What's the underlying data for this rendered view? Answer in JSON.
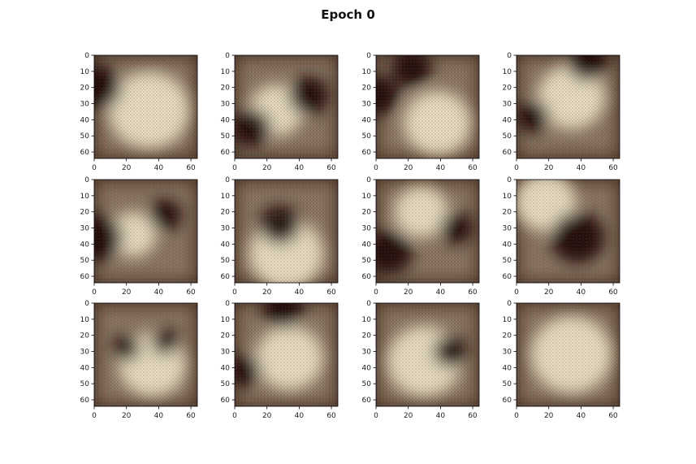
{
  "figure": {
    "title": "Epoch 0"
  },
  "chart_data": {
    "type": "image-grid",
    "title": "Epoch 0",
    "rows": 3,
    "cols": 4,
    "image_size": [
      64,
      64
    ],
    "xlim": [
      0,
      64
    ],
    "ylim": [
      64,
      0
    ],
    "xticks": [
      0,
      20,
      40,
      60
    ],
    "yticks": [
      0,
      10,
      20,
      30,
      40,
      50,
      60
    ],
    "tick_labels_x": [
      "0",
      "20",
      "40",
      "60"
    ],
    "tick_labels_y": [
      "0",
      "10",
      "20",
      "30",
      "40",
      "50",
      "60"
    ],
    "grid": false,
    "colors": {
      "bright": "#efe5c8",
      "mid": "#8a7460",
      "dark": "#160706"
    },
    "panels": [
      {
        "description_blobs": [
          {
            "cx": 34,
            "cy": 34,
            "r": 24,
            "tone": "bright"
          },
          {
            "cx": 2,
            "cy": 20,
            "r": 14,
            "tone": "dark"
          }
        ]
      },
      {
        "description_blobs": [
          {
            "cx": 26,
            "cy": 34,
            "r": 16,
            "tone": "bright"
          },
          {
            "cx": 10,
            "cy": 45,
            "r": 12,
            "tone": "dark"
          },
          {
            "cx": 46,
            "cy": 25,
            "r": 12,
            "tone": "dark"
          }
        ]
      },
      {
        "description_blobs": [
          {
            "cx": 38,
            "cy": 42,
            "r": 20,
            "tone": "bright"
          },
          {
            "cx": 22,
            "cy": 8,
            "r": 12,
            "tone": "dark"
          },
          {
            "cx": 2,
            "cy": 25,
            "r": 12,
            "tone": "dark"
          }
        ]
      },
      {
        "description_blobs": [
          {
            "cx": 34,
            "cy": 26,
            "r": 20,
            "tone": "bright"
          },
          {
            "cx": 44,
            "cy": 4,
            "r": 12,
            "tone": "dark"
          },
          {
            "cx": 10,
            "cy": 38,
            "r": 10,
            "tone": "dark"
          }
        ]
      },
      {
        "description_blobs": [
          {
            "cx": 24,
            "cy": 34,
            "r": 14,
            "tone": "bright"
          },
          {
            "cx": 3,
            "cy": 36,
            "r": 14,
            "tone": "dark"
          },
          {
            "cx": 44,
            "cy": 22,
            "r": 10,
            "tone": "dark"
          }
        ]
      },
      {
        "description_blobs": [
          {
            "cx": 32,
            "cy": 46,
            "r": 22,
            "tone": "bright"
          },
          {
            "cx": 28,
            "cy": 28,
            "r": 12,
            "tone": "dark"
          }
        ]
      },
      {
        "description_blobs": [
          {
            "cx": 28,
            "cy": 20,
            "r": 16,
            "tone": "bright"
          },
          {
            "cx": 8,
            "cy": 45,
            "r": 14,
            "tone": "dark"
          },
          {
            "cx": 50,
            "cy": 30,
            "r": 10,
            "tone": "dark"
          }
        ]
      },
      {
        "description_blobs": [
          {
            "cx": 18,
            "cy": 14,
            "r": 18,
            "tone": "bright"
          },
          {
            "cx": 38,
            "cy": 36,
            "r": 16,
            "tone": "dark"
          }
        ]
      },
      {
        "description_blobs": [
          {
            "cx": 36,
            "cy": 38,
            "r": 20,
            "tone": "bright"
          },
          {
            "cx": 20,
            "cy": 28,
            "r": 8,
            "tone": "dark"
          },
          {
            "cx": 44,
            "cy": 24,
            "r": 8,
            "tone": "dark"
          }
        ]
      },
      {
        "description_blobs": [
          {
            "cx": 34,
            "cy": 34,
            "r": 20,
            "tone": "bright"
          },
          {
            "cx": 30,
            "cy": 4,
            "r": 12,
            "tone": "dark"
          },
          {
            "cx": 6,
            "cy": 42,
            "r": 10,
            "tone": "dark"
          }
        ]
      },
      {
        "description_blobs": [
          {
            "cx": 30,
            "cy": 36,
            "r": 22,
            "tone": "bright"
          },
          {
            "cx": 46,
            "cy": 30,
            "r": 10,
            "tone": "dark"
          }
        ]
      },
      {
        "description_blobs": [
          {
            "cx": 34,
            "cy": 32,
            "r": 24,
            "tone": "bright"
          }
        ]
      }
    ]
  }
}
